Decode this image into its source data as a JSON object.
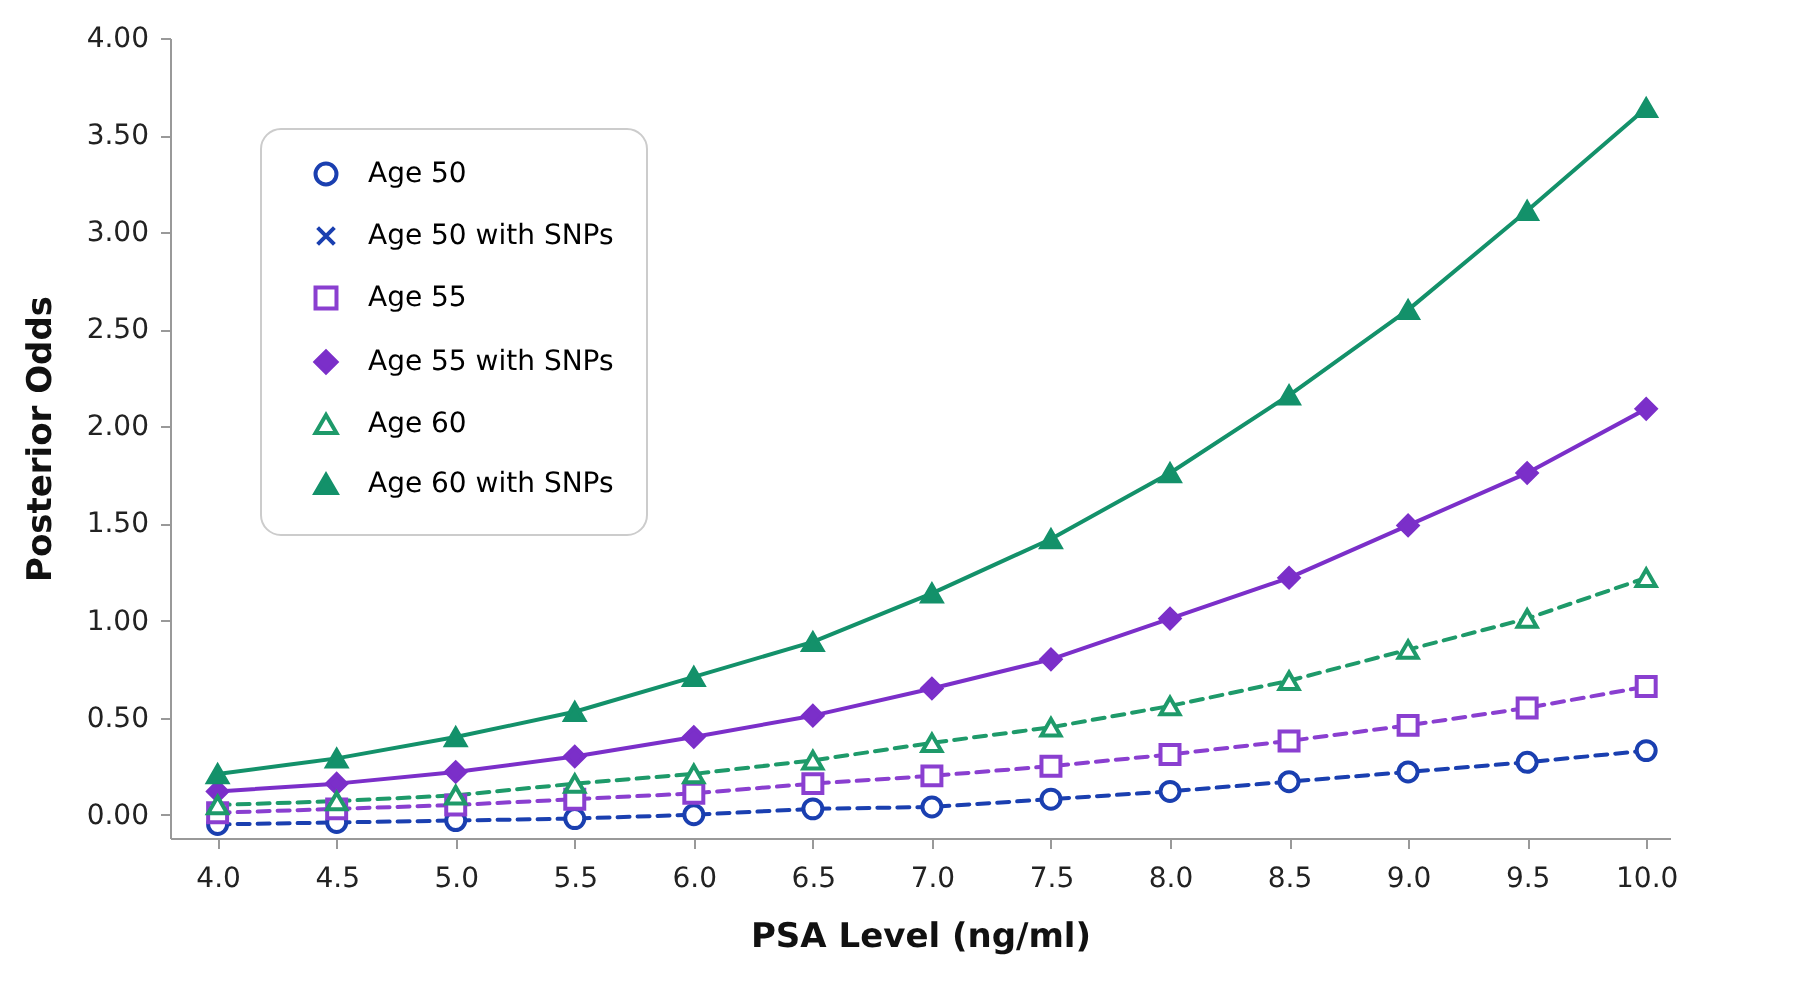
{
  "chart_data": {
    "type": "line",
    "xlabel": "PSA Level (ng/ml)",
    "ylabel": "Posterior Odds",
    "x": [
      4.0,
      4.5,
      5.0,
      5.5,
      6.0,
      6.5,
      7.0,
      7.5,
      8.0,
      8.5,
      9.0,
      9.5,
      10.0
    ],
    "xlim": [
      3.8,
      10.1
    ],
    "ylim": [
      -0.12,
      4.0
    ],
    "xticks": [
      {
        "value": 4,
        "label": "4.0"
      },
      {
        "value": 4.5,
        "label": "4.5"
      },
      {
        "value": 5,
        "label": "5.0"
      },
      {
        "value": 5.5,
        "label": "5.5"
      },
      {
        "value": 6,
        "label": "6.0"
      },
      {
        "value": 6.5,
        "label": "6.5"
      },
      {
        "value": 7,
        "label": "7.0"
      },
      {
        "value": 7.5,
        "label": "7.5"
      },
      {
        "value": 8,
        "label": "8.0"
      },
      {
        "value": 8.5,
        "label": "8.5"
      },
      {
        "value": 9,
        "label": "9.0"
      },
      {
        "value": 9.5,
        "label": "9.5"
      },
      {
        "value": 10,
        "label": "10.0"
      }
    ],
    "yticks": [
      {
        "value": 0,
        "label": "0.00"
      },
      {
        "value": 0.5,
        "label": "0.50"
      },
      {
        "value": 1,
        "label": "1.00"
      },
      {
        "value": 1.5,
        "label": "1.50"
      },
      {
        "value": 2,
        "label": "2.00"
      },
      {
        "value": 2.5,
        "label": "2.50"
      },
      {
        "value": 3,
        "label": "3.00"
      },
      {
        "value": 3.5,
        "label": "3.50"
      },
      {
        "value": 4,
        "label": "4.00"
      }
    ],
    "grid": false,
    "legend": "top left",
    "series": [
      {
        "name": "Age 50",
        "color": "#1a3fb0",
        "marker": "circle",
        "line_style": "dashed",
        "values": [
          -0.05,
          -0.04,
          -0.03,
          -0.02,
          0.0,
          0.03,
          0.04,
          0.08,
          0.12,
          0.17,
          0.22,
          0.27,
          0.33
        ]
      },
      {
        "name": "Age 50 with SNPs",
        "color": "#1a3fb0",
        "marker": "cross",
        "line_style": "solid",
        "values": [
          null,
          null,
          null,
          null,
          null,
          null,
          null,
          null,
          null,
          null,
          null,
          null,
          null
        ]
      },
      {
        "name": "Age 55",
        "color": "#8a3fd0",
        "marker": "square",
        "line_style": "dashed",
        "values": [
          0.01,
          0.03,
          0.05,
          0.08,
          0.11,
          0.16,
          0.2,
          0.25,
          0.31,
          0.38,
          0.46,
          0.55,
          0.66
        ]
      },
      {
        "name": "Age 55 with SNPs",
        "color": "#7b2fc9",
        "marker": "diamond",
        "line_style": "solid",
        "values": [
          0.12,
          0.16,
          0.22,
          0.3,
          0.4,
          0.51,
          0.65,
          0.8,
          1.01,
          1.22,
          1.49,
          1.76,
          2.09
        ]
      },
      {
        "name": "Age 60",
        "color": "#1e9a6a",
        "marker": "triangle",
        "line_style": "dashed",
        "values": [
          0.05,
          0.07,
          0.1,
          0.16,
          0.21,
          0.28,
          0.37,
          0.45,
          0.56,
          0.69,
          0.85,
          1.01,
          1.22
        ]
      },
      {
        "name": "Age 60 with SNPs",
        "color": "#13916a",
        "marker": "triangle",
        "line_style": "solid",
        "values": [
          0.21,
          0.29,
          0.4,
          0.53,
          0.71,
          0.89,
          1.14,
          1.42,
          1.76,
          2.16,
          2.6,
          3.11,
          3.64
        ]
      }
    ]
  }
}
